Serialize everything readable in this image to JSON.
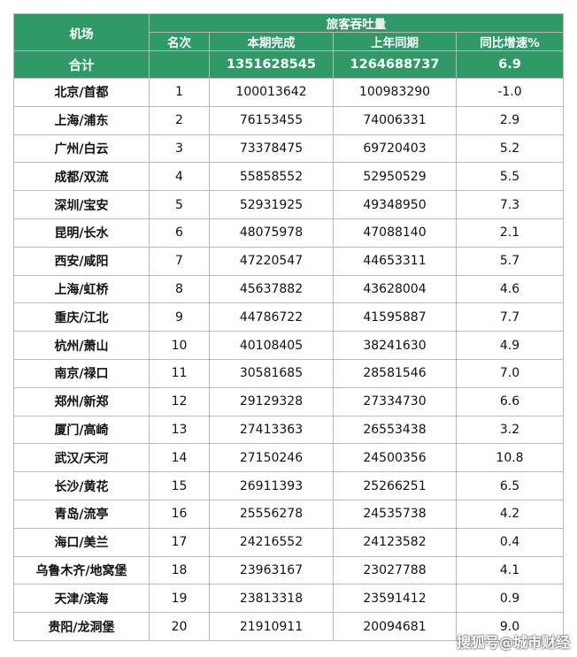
{
  "header": {
    "airport": "机场",
    "group": "旅客吞吐量",
    "rank": "名次",
    "current": "本期完成",
    "last_year": "上年同期",
    "growth": "同比增速%"
  },
  "total": {
    "label": "合计",
    "rank": "",
    "current": "1351628545",
    "last_year": "1264688737",
    "growth": "6.9"
  },
  "rows": [
    {
      "airport": "北京/首都",
      "rank": "1",
      "current": "100013642",
      "last_year": "100983290",
      "growth": "-1.0"
    },
    {
      "airport": "上海/浦东",
      "rank": "2",
      "current": "76153455",
      "last_year": "74006331",
      "growth": "2.9"
    },
    {
      "airport": "广州/白云",
      "rank": "3",
      "current": "73378475",
      "last_year": "69720403",
      "growth": "5.2"
    },
    {
      "airport": "成都/双流",
      "rank": "4",
      "current": "55858552",
      "last_year": "52950529",
      "growth": "5.5"
    },
    {
      "airport": "深圳/宝安",
      "rank": "5",
      "current": "52931925",
      "last_year": "49348950",
      "growth": "7.3"
    },
    {
      "airport": "昆明/长水",
      "rank": "6",
      "current": "48075978",
      "last_year": "47088140",
      "growth": "2.1"
    },
    {
      "airport": "西安/咸阳",
      "rank": "7",
      "current": "47220547",
      "last_year": "44653311",
      "growth": "5.7"
    },
    {
      "airport": "上海/虹桥",
      "rank": "8",
      "current": "45637882",
      "last_year": "43628004",
      "growth": "4.6"
    },
    {
      "airport": "重庆/江北",
      "rank": "9",
      "current": "44786722",
      "last_year": "41595887",
      "growth": "7.7"
    },
    {
      "airport": "杭州/萧山",
      "rank": "10",
      "current": "40108405",
      "last_year": "38241630",
      "growth": "4.9"
    },
    {
      "airport": "南京/禄口",
      "rank": "11",
      "current": "30581685",
      "last_year": "28581546",
      "growth": "7.0"
    },
    {
      "airport": "郑州/新郑",
      "rank": "12",
      "current": "29129328",
      "last_year": "27334730",
      "growth": "6.6"
    },
    {
      "airport": "厦门/高崎",
      "rank": "13",
      "current": "27413363",
      "last_year": "26553438",
      "growth": "3.2"
    },
    {
      "airport": "武汉/天河",
      "rank": "14",
      "current": "27150246",
      "last_year": "24500356",
      "growth": "10.8"
    },
    {
      "airport": "长沙/黄花",
      "rank": "15",
      "current": "26911393",
      "last_year": "25266251",
      "growth": "6.5"
    },
    {
      "airport": "青岛/流亭",
      "rank": "16",
      "current": "25556278",
      "last_year": "24535738",
      "growth": "4.2"
    },
    {
      "airport": "海口/美兰",
      "rank": "17",
      "current": "24216552",
      "last_year": "24123582",
      "growth": "0.4"
    },
    {
      "airport": "乌鲁木齐/地窝堡",
      "rank": "18",
      "current": "23963167",
      "last_year": "23027788",
      "growth": "4.1"
    },
    {
      "airport": "天津/滨海",
      "rank": "19",
      "current": "23813318",
      "last_year": "23591412",
      "growth": "0.9"
    },
    {
      "airport": "贵阳/龙洞堡",
      "rank": "20",
      "current": "21910911",
      "last_year": "20094681",
      "growth": "9.0"
    }
  ],
  "watermark": "搜狐号@城市财经",
  "colors": {
    "header_bg": "#2f9a68",
    "header_text": "#ffffff",
    "border": "#b9b9b9"
  }
}
